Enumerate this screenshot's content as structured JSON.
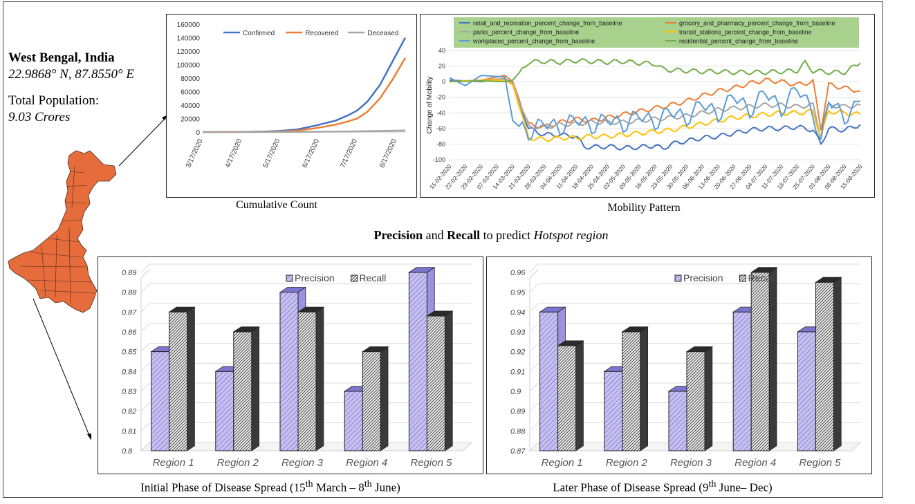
{
  "info": {
    "state": "West Bengal, India",
    "coords": "22.9868° N, 87.8550° E",
    "population_label": "Total Population:",
    "population_value": "9.03 Crores"
  },
  "map": {
    "icon": "west-bengal-map",
    "fill_color": "#e66c3c"
  },
  "captions": {
    "cumulative": "Cumulative  Count",
    "mobility": "Mobility  Pattern",
    "mid_title_parts": [
      "Precision",
      " and ",
      "Recall",
      " to predict ",
      "Hotspot region"
    ],
    "initial_phase": [
      "Initial  Phase  of Disease  Spread (15",
      "th",
      " March  – 8",
      "th",
      " June)"
    ],
    "later_phase": [
      "Later Phase  of Disease  Spread  (9",
      "th",
      " June– Dec)"
    ]
  },
  "chart_data": [
    {
      "id": "cumulative",
      "type": "line",
      "title": "",
      "x": [
        "3/17/2020",
        "4/17/2020",
        "5/17/2020",
        "6/17/2020",
        "7/17/2020",
        "8/17/2020"
      ],
      "x_num": [
        0,
        31,
        61,
        92,
        122,
        153
      ],
      "ylim": [
        0,
        160000
      ],
      "yticks": [
        0,
        20000,
        40000,
        60000,
        80000,
        100000,
        120000,
        140000,
        160000
      ],
      "series": [
        {
          "name": "Confirmed",
          "color": "#4472c4",
          "points": [
            [
              0,
              0
            ],
            [
              30,
              200
            ],
            [
              45,
              600
            ],
            [
              60,
              1500
            ],
            [
              75,
              4000
            ],
            [
              90,
              10000
            ],
            [
              105,
              17000
            ],
            [
              115,
              25000
            ],
            [
              122,
              32000
            ],
            [
              130,
              45000
            ],
            [
              140,
              70000
            ],
            [
              150,
              105000
            ],
            [
              160,
              140000
            ]
          ]
        },
        {
          "name": "Recovered",
          "color": "#ed7d31",
          "points": [
            [
              0,
              0
            ],
            [
              45,
              200
            ],
            [
              60,
              600
            ],
            [
              75,
              2200
            ],
            [
              90,
              6000
            ],
            [
              105,
              11000
            ],
            [
              115,
              16000
            ],
            [
              122,
              20000
            ],
            [
              130,
              30000
            ],
            [
              140,
              50000
            ],
            [
              150,
              78000
            ],
            [
              160,
              110000
            ]
          ]
        },
        {
          "name": "Deceased",
          "color": "#a5a5a5",
          "points": [
            [
              0,
              0
            ],
            [
              60,
              100
            ],
            [
              90,
              400
            ],
            [
              122,
              1000
            ],
            [
              160,
              2400
            ]
          ]
        }
      ]
    },
    {
      "id": "mobility",
      "type": "line",
      "ylabel": "Change of Mobility",
      "ylim": [
        -100,
        40
      ],
      "yticks": [
        -100,
        -80,
        -60,
        -40,
        -20,
        0,
        20,
        40
      ],
      "x": [
        "15-02-2020",
        "22-02-2020",
        "29-02-2020",
        "07-03-2020",
        "14-03-2020",
        "21-03-2020",
        "28-03-2020",
        "04-04-2020",
        "11-04-2020",
        "18-04-2020",
        "25-04-2020",
        "02-05-2020",
        "09-05-2020",
        "16-05-2020",
        "23-05-2020",
        "30-05-2020",
        "06-06-2020",
        "13-06-2020",
        "20-06-2020",
        "27-06-2020",
        "04-07-2020",
        "11-07-2020",
        "18-07-2020",
        "25-07-2020",
        "01-08-2020",
        "08-08-2020",
        "15-08-2020"
      ],
      "legend_bg": "#a9d18e",
      "series": [
        {
          "name": "retail_and_recreation_percent_change_from_baseline",
          "color": "#4472c4",
          "points": [
            [
              0,
              2
            ],
            [
              2,
              0
            ],
            [
              3.5,
              4
            ],
            [
              4,
              -2
            ],
            [
              5,
              -60
            ],
            [
              6,
              -68
            ],
            [
              7,
              -68
            ],
            [
              8,
              -70
            ],
            [
              8.5,
              -83
            ],
            [
              9,
              -84
            ],
            [
              10,
              -83
            ],
            [
              11,
              -85
            ],
            [
              12,
              -84
            ],
            [
              13,
              -82
            ],
            [
              13.5,
              -86
            ],
            [
              14,
              -80
            ],
            [
              15,
              -76
            ],
            [
              16,
              -72
            ],
            [
              17,
              -70
            ],
            [
              18,
              -66
            ],
            [
              19,
              -62
            ],
            [
              20,
              -60
            ],
            [
              21,
              -60
            ],
            [
              22,
              -58
            ],
            [
              23,
              -62
            ],
            [
              23.5,
              -80
            ],
            [
              24,
              -60
            ],
            [
              25,
              -62
            ],
            [
              26,
              -55
            ]
          ]
        },
        {
          "name": "grocery_and_pharmacy_percent_change_from_baseline",
          "color": "#ed7d31",
          "points": [
            [
              0,
              0
            ],
            [
              2,
              2
            ],
            [
              3.5,
              8
            ],
            [
              4,
              0
            ],
            [
              5,
              -55
            ],
            [
              6,
              -58
            ],
            [
              7,
              -52
            ],
            [
              8,
              -48
            ],
            [
              9,
              -50
            ],
            [
              10,
              -46
            ],
            [
              11,
              -42
            ],
            [
              12,
              -38
            ],
            [
              13,
              -34
            ],
            [
              14,
              -30
            ],
            [
              15,
              -25
            ],
            [
              16,
              -18
            ],
            [
              17,
              -12
            ],
            [
              18,
              -8
            ],
            [
              19,
              -2
            ],
            [
              20,
              2
            ],
            [
              21,
              0
            ],
            [
              22,
              -4
            ],
            [
              23,
              0
            ],
            [
              23.5,
              -60
            ],
            [
              24,
              -4
            ],
            [
              25,
              -8
            ],
            [
              26,
              -12
            ]
          ]
        },
        {
          "name": "parks_percent_change_from_baseline",
          "color": "#a5a5a5",
          "points": [
            [
              0,
              0
            ],
            [
              2,
              2
            ],
            [
              3.5,
              4
            ],
            [
              4,
              -2
            ],
            [
              5,
              -58
            ],
            [
              6,
              -58
            ],
            [
              7,
              -55
            ],
            [
              8,
              -54
            ],
            [
              9,
              -52
            ],
            [
              10,
              -52
            ],
            [
              11,
              -52
            ],
            [
              12,
              -50
            ],
            [
              13,
              -48
            ],
            [
              14,
              -46
            ],
            [
              15,
              -44
            ],
            [
              16,
              -40
            ],
            [
              17,
              -36
            ],
            [
              18,
              -34
            ],
            [
              19,
              -32
            ],
            [
              20,
              -30
            ],
            [
              21,
              -30
            ],
            [
              22,
              -32
            ],
            [
              23,
              -30
            ],
            [
              23.5,
              -70
            ],
            [
              24,
              -30
            ],
            [
              25,
              -32
            ],
            [
              26,
              -30
            ]
          ]
        },
        {
          "name": "transit_stations_percent_change_from_baseline",
          "color": "#ffc000",
          "points": [
            [
              0,
              0
            ],
            [
              2,
              2
            ],
            [
              3.5,
              2
            ],
            [
              4,
              -4
            ],
            [
              5,
              -72
            ],
            [
              6,
              -74
            ],
            [
              7,
              -72
            ],
            [
              8,
              -72
            ],
            [
              9,
              -70
            ],
            [
              10,
              -70
            ],
            [
              11,
              -68
            ],
            [
              12,
              -66
            ],
            [
              13,
              -64
            ],
            [
              14,
              -62
            ],
            [
              15,
              -58
            ],
            [
              16,
              -54
            ],
            [
              17,
              -50
            ],
            [
              18,
              -46
            ],
            [
              19,
              -44
            ],
            [
              20,
              -42
            ],
            [
              21,
              -40
            ],
            [
              22,
              -40
            ],
            [
              23,
              -38
            ],
            [
              23.5,
              -70
            ],
            [
              24,
              -38
            ],
            [
              25,
              -40
            ],
            [
              26,
              -42
            ]
          ]
        },
        {
          "name": "workplaces_percent_change_from_baseline",
          "color": "#5b9bd5",
          "points": [
            [
              0,
              5
            ],
            [
              1,
              -5
            ],
            [
              2,
              8
            ],
            [
              3.5,
              6
            ],
            [
              4,
              -50
            ],
            [
              5,
              -68
            ],
            [
              6,
              -50
            ],
            [
              7,
              -62
            ],
            [
              8,
              -45
            ],
            [
              9,
              -60
            ],
            [
              10,
              -45
            ],
            [
              11,
              -58
            ],
            [
              12,
              -40
            ],
            [
              13,
              -55
            ],
            [
              14,
              -35
            ],
            [
              15,
              -50
            ],
            [
              16,
              -25
            ],
            [
              17,
              -45
            ],
            [
              18,
              -15
            ],
            [
              19,
              -40
            ],
            [
              20,
              -10
            ],
            [
              21,
              -38
            ],
            [
              22,
              -5
            ],
            [
              23,
              -40
            ],
            [
              23.5,
              -80
            ],
            [
              24,
              -20
            ],
            [
              25,
              -48
            ],
            [
              26,
              -25
            ]
          ]
        },
        {
          "name": "residential_percent_change_from_baseline",
          "color": "#70ad47",
          "points": [
            [
              0,
              0
            ],
            [
              2,
              1
            ],
            [
              3.5,
              0
            ],
            [
              4,
              2
            ],
            [
              5,
              25
            ],
            [
              6,
              26
            ],
            [
              7,
              25
            ],
            [
              8,
              27
            ],
            [
              9,
              26
            ],
            [
              10,
              25
            ],
            [
              11,
              26
            ],
            [
              12,
              24
            ],
            [
              13,
              23
            ],
            [
              13.5,
              16
            ],
            [
              14,
              15
            ],
            [
              15,
              14
            ],
            [
              16,
              13
            ],
            [
              17,
              13
            ],
            [
              18,
              12
            ],
            [
              19,
              12
            ],
            [
              20,
              12
            ],
            [
              21,
              13
            ],
            [
              22,
              14
            ],
            [
              22.5,
              24
            ],
            [
              23,
              14
            ],
            [
              24,
              12
            ],
            [
              25,
              12
            ],
            [
              26,
              24
            ]
          ]
        }
      ]
    },
    {
      "id": "initial-phase",
      "type": "bar",
      "categories": [
        "Region 1",
        "Region 2",
        "Region 3",
        "Region 4",
        "Region 5"
      ],
      "ylim": [
        0.8,
        0.89
      ],
      "yticks": [
        0.8,
        0.81,
        0.82,
        0.83,
        0.84,
        0.85,
        0.86,
        0.87,
        0.88,
        0.89
      ],
      "series": [
        {
          "name": "Precision",
          "values": [
            0.85,
            0.84,
            0.88,
            0.83,
            0.89
          ]
        },
        {
          "name": "Recall",
          "values": [
            0.87,
            0.86,
            0.87,
            0.85,
            0.868
          ]
        }
      ]
    },
    {
      "id": "later-phase",
      "type": "bar",
      "categories": [
        "Region 1",
        "Region 2",
        "Region 3",
        "Region 4",
        "Region 5"
      ],
      "ylim": [
        0.87,
        0.96
      ],
      "yticks": [
        0.87,
        0.88,
        0.89,
        0.9,
        0.91,
        0.92,
        0.93,
        0.94,
        0.95,
        0.96
      ],
      "series": [
        {
          "name": "Precision",
          "values": [
            0.94,
            0.91,
            0.9,
            0.94,
            0.93
          ]
        },
        {
          "name": "Recall",
          "values": [
            0.923,
            0.93,
            0.92,
            0.96,
            0.955
          ]
        }
      ]
    }
  ],
  "colors": {
    "precision_fill": "#c5c0f0",
    "precision_stroke": "#222",
    "recall_fill": "#6a6a6a",
    "grid": "#d9d9d9"
  }
}
